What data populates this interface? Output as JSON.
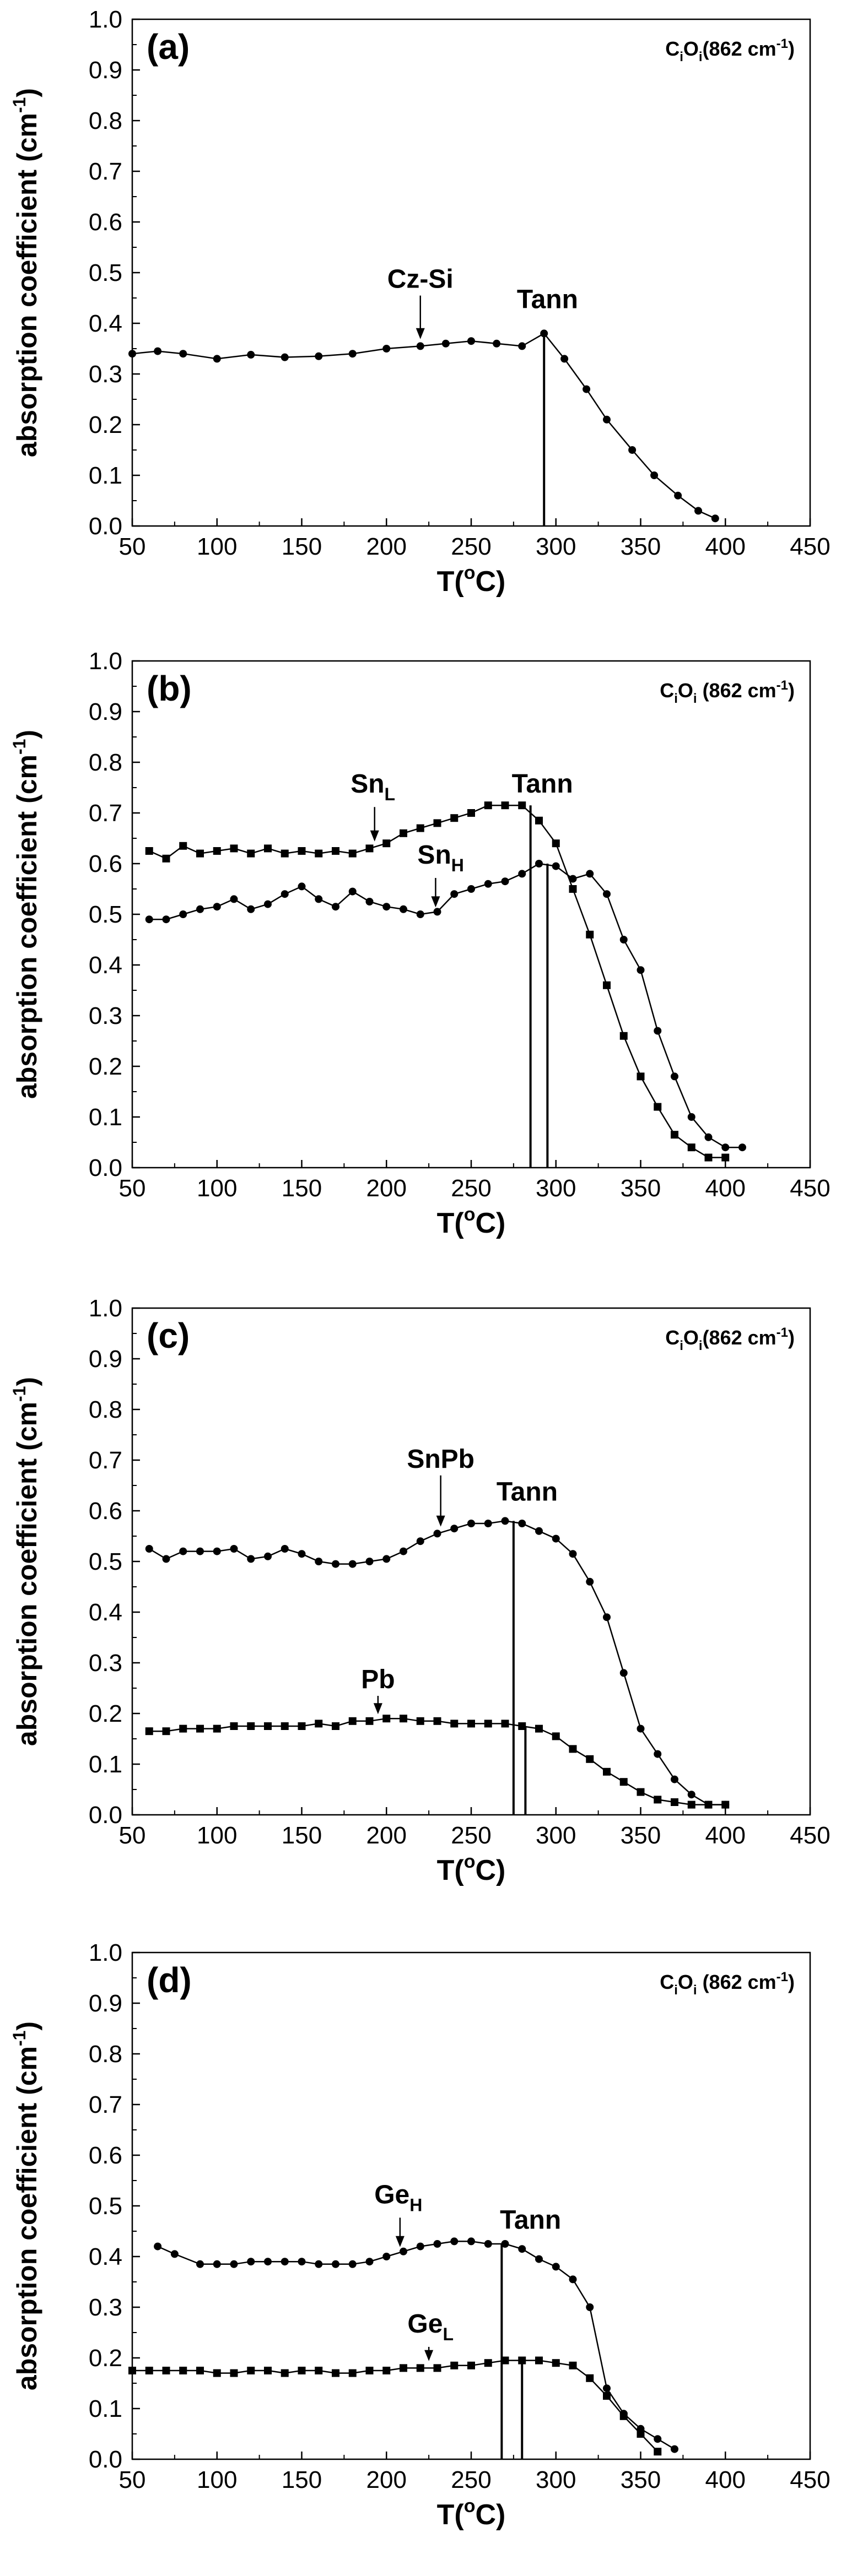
{
  "chart_data": [
    {
      "type": "line",
      "panel_label": "(a)",
      "species": {
        "base": "C",
        "sub1": "i",
        "mid": "O",
        "sub2": "i",
        "rest": "(862 cm",
        "sup": "-1",
        "close": ")"
      },
      "ylabel": {
        "main": "absorption coefficient (cm",
        "sup": "-1",
        "close": ")"
      },
      "xlabel": {
        "main": "T(",
        "sup": "o",
        "close": "C)"
      },
      "xlim": [
        50,
        450
      ],
      "ylim": [
        0.0,
        1.0
      ],
      "xticks": [
        "50",
        "100",
        "150",
        "200",
        "250",
        "300",
        "350",
        "400",
        "450"
      ],
      "yticks": [
        "0.0",
        "0.1",
        "0.2",
        "0.3",
        "0.4",
        "0.5",
        "0.6",
        "0.7",
        "0.8",
        "0.9",
        "1.0"
      ],
      "series": [
        {
          "name": "Cz-Si",
          "marker": "circle",
          "x": [
            50,
            65,
            80,
            100,
            120,
            140,
            160,
            180,
            200,
            220,
            235,
            250,
            265,
            280,
            293,
            305,
            318,
            330,
            345,
            358,
            372,
            384,
            394
          ],
          "y": [
            0.34,
            0.345,
            0.34,
            0.33,
            0.338,
            0.333,
            0.335,
            0.34,
            0.35,
            0.355,
            0.36,
            0.365,
            0.36,
            0.355,
            0.38,
            0.33,
            0.27,
            0.21,
            0.15,
            0.1,
            0.06,
            0.03,
            0.015
          ]
        }
      ],
      "annotations": [
        {
          "text": "Cz-Si",
          "sub": "",
          "arrow_x": 220,
          "arrow_y": 0.36,
          "text_x": 220,
          "text_y": 0.47
        },
        {
          "text": "Tann",
          "sub": "",
          "arrow_x": null,
          "arrow_y": null,
          "text_x": 295,
          "text_y": 0.43
        }
      ],
      "tann_lines": [
        {
          "x": 293,
          "y": 0.38
        }
      ]
    },
    {
      "type": "line",
      "panel_label": "(b)",
      "species": {
        "base": "C",
        "sub1": "i",
        "mid": "O",
        "sub2": "i",
        "rest": " (862 cm",
        "sup": "-1",
        "close": ")"
      },
      "ylabel": {
        "main": "absorption coefficient (cm",
        "sup": "-1",
        "close": ")"
      },
      "xlabel": {
        "main": "T(",
        "sup": "o",
        "close": "C)"
      },
      "xlim": [
        50,
        450
      ],
      "ylim": [
        0.0,
        1.0
      ],
      "xticks": [
        "50",
        "100",
        "150",
        "200",
        "250",
        "300",
        "350",
        "400",
        "450"
      ],
      "yticks": [
        "0.0",
        "0.1",
        "0.2",
        "0.3",
        "0.4",
        "0.5",
        "0.6",
        "0.7",
        "0.8",
        "0.9",
        "1.0"
      ],
      "series": [
        {
          "name": "SnL",
          "marker": "square",
          "x": [
            60,
            70,
            80,
            90,
            100,
            110,
            120,
            130,
            140,
            150,
            160,
            170,
            180,
            190,
            200,
            210,
            220,
            230,
            240,
            250,
            260,
            270,
            280,
            290,
            300,
            310,
            320,
            330,
            340,
            350,
            360,
            370,
            380,
            390,
            400
          ],
          "y": [
            0.625,
            0.61,
            0.635,
            0.62,
            0.625,
            0.63,
            0.62,
            0.63,
            0.62,
            0.625,
            0.62,
            0.625,
            0.62,
            0.63,
            0.64,
            0.66,
            0.67,
            0.68,
            0.69,
            0.7,
            0.715,
            0.715,
            0.715,
            0.685,
            0.64,
            0.55,
            0.46,
            0.36,
            0.26,
            0.18,
            0.12,
            0.065,
            0.04,
            0.02,
            0.02
          ]
        },
        {
          "name": "SnH",
          "marker": "circle",
          "x": [
            60,
            70,
            80,
            90,
            100,
            110,
            120,
            130,
            140,
            150,
            160,
            170,
            180,
            190,
            200,
            210,
            220,
            230,
            240,
            250,
            260,
            270,
            280,
            290,
            300,
            310,
            320,
            330,
            340,
            350,
            360,
            370,
            380,
            390,
            400,
            410
          ],
          "y": [
            0.49,
            0.49,
            0.5,
            0.51,
            0.515,
            0.53,
            0.51,
            0.52,
            0.54,
            0.555,
            0.53,
            0.515,
            0.545,
            0.525,
            0.515,
            0.51,
            0.5,
            0.505,
            0.54,
            0.55,
            0.56,
            0.565,
            0.58,
            0.6,
            0.595,
            0.57,
            0.58,
            0.54,
            0.45,
            0.39,
            0.27,
            0.18,
            0.1,
            0.06,
            0.04,
            0.04
          ]
        }
      ],
      "annotations": [
        {
          "text": "Sn",
          "sub": "L",
          "arrow_x": 193,
          "arrow_y": 0.635,
          "text_x": 192,
          "text_y": 0.74
        },
        {
          "text": "Sn",
          "sub": "H",
          "arrow_x": 229,
          "arrow_y": 0.505,
          "text_x": 232,
          "text_y": 0.6
        },
        {
          "text": "Tann",
          "sub": "",
          "arrow_x": null,
          "arrow_y": null,
          "text_x": 292,
          "text_y": 0.74
        }
      ],
      "tann_lines": [
        {
          "x": 285,
          "y": 0.715
        },
        {
          "x": 295,
          "y": 0.6
        }
      ]
    },
    {
      "type": "line",
      "panel_label": "(c)",
      "species": {
        "base": "C",
        "sub1": "i",
        "mid": "O",
        "sub2": "i",
        "rest": "(862 cm",
        "sup": "-1",
        "close": ")"
      },
      "ylabel": {
        "main": "absorption coefficient (cm",
        "sup": "-1",
        "close": ")"
      },
      "xlabel": {
        "main": "T(",
        "sup": "o",
        "close": "C)"
      },
      "xlim": [
        50,
        450
      ],
      "ylim": [
        0.0,
        1.0
      ],
      "xticks": [
        "50",
        "100",
        "150",
        "200",
        "250",
        "300",
        "350",
        "400",
        "450"
      ],
      "yticks": [
        "0.0",
        "0.1",
        "0.2",
        "0.3",
        "0.4",
        "0.5",
        "0.6",
        "0.7",
        "0.8",
        "0.9",
        "1.0"
      ],
      "series": [
        {
          "name": "SnPb",
          "marker": "circle",
          "x": [
            60,
            70,
            80,
            90,
            100,
            110,
            120,
            130,
            140,
            150,
            160,
            170,
            180,
            190,
            200,
            210,
            220,
            230,
            240,
            250,
            260,
            270,
            280,
            290,
            300,
            310,
            320,
            330,
            340,
            350,
            360,
            370,
            380,
            390,
            400
          ],
          "y": [
            0.525,
            0.505,
            0.52,
            0.52,
            0.52,
            0.525,
            0.505,
            0.51,
            0.525,
            0.515,
            0.5,
            0.495,
            0.495,
            0.5,
            0.505,
            0.52,
            0.54,
            0.555,
            0.565,
            0.575,
            0.575,
            0.58,
            0.575,
            0.56,
            0.545,
            0.515,
            0.46,
            0.39,
            0.28,
            0.17,
            0.12,
            0.07,
            0.04,
            0.02,
            0.02
          ]
        },
        {
          "name": "Pb",
          "marker": "square",
          "x": [
            60,
            70,
            80,
            90,
            100,
            110,
            120,
            130,
            140,
            150,
            160,
            170,
            180,
            190,
            200,
            210,
            220,
            230,
            240,
            250,
            260,
            270,
            280,
            290,
            300,
            310,
            320,
            330,
            340,
            350,
            360,
            370,
            380,
            390,
            400
          ],
          "y": [
            0.165,
            0.165,
            0.17,
            0.17,
            0.17,
            0.175,
            0.175,
            0.175,
            0.175,
            0.175,
            0.18,
            0.175,
            0.185,
            0.185,
            0.19,
            0.19,
            0.185,
            0.185,
            0.18,
            0.18,
            0.18,
            0.18,
            0.175,
            0.17,
            0.155,
            0.13,
            0.11,
            0.085,
            0.065,
            0.045,
            0.03,
            0.025,
            0.02,
            0.02,
            0.02
          ]
        }
      ],
      "annotations": [
        {
          "text": "SnPb",
          "sub": "",
          "arrow_x": 232,
          "arrow_y": 0.56,
          "text_x": 232,
          "text_y": 0.685
        },
        {
          "text": "Pb",
          "sub": "",
          "arrow_x": 195,
          "arrow_y": 0.19,
          "text_x": 195,
          "text_y": 0.25
        },
        {
          "text": "Tann",
          "sub": "",
          "arrow_x": null,
          "arrow_y": null,
          "text_x": 283,
          "text_y": 0.62
        }
      ],
      "tann_lines": [
        {
          "x": 275,
          "y": 0.58
        },
        {
          "x": 282,
          "y": 0.175
        }
      ]
    },
    {
      "type": "line",
      "panel_label": "(d)",
      "species": {
        "base": "C",
        "sub1": "i",
        "mid": "O",
        "sub2": "i",
        "rest": " (862 cm",
        "sup": "-1",
        "close": ")"
      },
      "ylabel": {
        "main": "absorption coefficient (cm",
        "sup": "-1",
        "close": ")"
      },
      "xlabel": {
        "main": "T(",
        "sup": "o",
        "close": "C)"
      },
      "xlim": [
        50,
        450
      ],
      "ylim": [
        0.0,
        1.0
      ],
      "xticks": [
        "50",
        "100",
        "150",
        "200",
        "250",
        "300",
        "350",
        "400",
        "450"
      ],
      "yticks": [
        "0.0",
        "0.1",
        "0.2",
        "0.3",
        "0.4",
        "0.5",
        "0.6",
        "0.7",
        "0.8",
        "0.9",
        "1.0"
      ],
      "series": [
        {
          "name": "GeH",
          "marker": "circle",
          "x": [
            65,
            75,
            90,
            100,
            110,
            120,
            130,
            140,
            150,
            160,
            170,
            180,
            190,
            200,
            210,
            220,
            230,
            240,
            250,
            260,
            270,
            280,
            290,
            300,
            310,
            320,
            330,
            340,
            350,
            360,
            370
          ],
          "y": [
            0.42,
            0.405,
            0.385,
            0.385,
            0.385,
            0.39,
            0.39,
            0.39,
            0.39,
            0.385,
            0.385,
            0.385,
            0.39,
            0.4,
            0.41,
            0.42,
            0.425,
            0.43,
            0.43,
            0.425,
            0.425,
            0.415,
            0.395,
            0.38,
            0.355,
            0.3,
            0.14,
            0.09,
            0.06,
            0.04,
            0.02
          ]
        },
        {
          "name": "GeL",
          "marker": "square",
          "x": [
            50,
            60,
            70,
            80,
            90,
            100,
            110,
            120,
            130,
            140,
            150,
            160,
            170,
            180,
            190,
            200,
            210,
            220,
            230,
            240,
            250,
            260,
            270,
            280,
            290,
            300,
            310,
            320,
            330,
            340,
            350,
            360
          ],
          "y": [
            0.175,
            0.175,
            0.175,
            0.175,
            0.175,
            0.17,
            0.17,
            0.175,
            0.175,
            0.17,
            0.175,
            0.175,
            0.17,
            0.17,
            0.175,
            0.175,
            0.18,
            0.18,
            0.18,
            0.185,
            0.185,
            0.19,
            0.195,
            0.195,
            0.195,
            0.19,
            0.185,
            0.16,
            0.125,
            0.085,
            0.05,
            0.015
          ]
        }
      ],
      "annotations": [
        {
          "text": "Ge",
          "sub": "H",
          "arrow_x": 208,
          "arrow_y": 0.41,
          "text_x": 207,
          "text_y": 0.505
        },
        {
          "text": "Ge",
          "sub": "L",
          "arrow_x": 225,
          "arrow_y": 0.185,
          "text_x": 226,
          "text_y": 0.25
        },
        {
          "text": "Tann",
          "sub": "",
          "arrow_x": null,
          "arrow_y": null,
          "text_x": 285,
          "text_y": 0.455
        }
      ],
      "tann_lines": [
        {
          "x": 268,
          "y": 0.425
        },
        {
          "x": 280,
          "y": 0.195
        }
      ]
    }
  ]
}
